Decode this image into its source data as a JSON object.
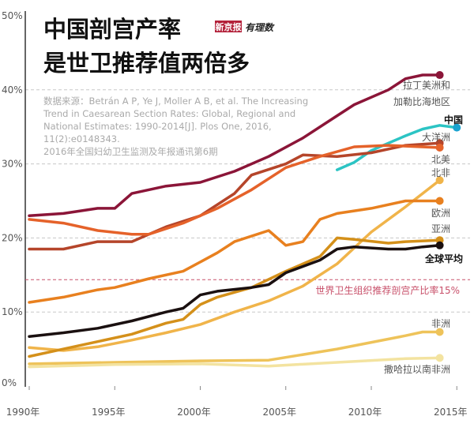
{
  "title": [
    "中国剖宫产率",
    "是世卫推荐值两倍多"
  ],
  "logos": [
    "新京报",
    "有理数"
  ],
  "source": [
    "数据来源：Betrán A P, Ye J, Moller A B, et al. The Increasing",
    "Trend in Caesarean Section Rates: Global, Regional and",
    "National Estimates: 1990-2014[J]. Plos One, 2016,",
    "11(2):e0148343.",
    "2016年全国妇幼卫生监测及年报通讯第6期"
  ],
  "chart_data": {
    "type": "line",
    "title": "中国剖宫产率 是世卫推荐值两倍多",
    "xlim": [
      1990,
      2015
    ],
    "ylim": [
      0,
      50
    ],
    "x_ticks": [
      "1990年",
      "1995年",
      "2000年",
      "2005年",
      "2010年",
      "2015年"
    ],
    "y_ticks": [
      "0%",
      "10%",
      "20%",
      "30%",
      "40%",
      "50%"
    ],
    "grid": "horizontal dashed at 10%, 20%, 30%, 40%",
    "reference_line": {
      "value": 15,
      "label": "世界卫生组织推荐剖宫产比率15%",
      "color": "#c8506a"
    },
    "series": [
      {
        "name": "拉丁美洲和加勒比海地区",
        "label_lines": [
          "拉丁美洲和",
          "加勒比海地区"
        ],
        "color": "#8b1538",
        "x": [
          1990,
          1992,
          1994,
          1995,
          1996,
          1998,
          2000,
          2002,
          2004,
          2006,
          2008,
          2009,
          2011,
          2012,
          2013,
          2014
        ],
        "y": [
          23,
          23.3,
          24,
          24,
          26,
          27,
          27.5,
          29,
          31,
          33.5,
          36.5,
          38,
          40,
          41.5,
          42,
          42
        ]
      },
      {
        "name": "中国",
        "color": "#2cc4c4",
        "dot_color": "#1aa3d0",
        "bold": true,
        "x": [
          2008,
          2009,
          2010,
          2011,
          2012,
          2013,
          2014,
          2015
        ],
        "y": [
          29.2,
          30.2,
          31.8,
          32.8,
          33.8,
          34.7,
          35.2,
          34.9
        ]
      },
      {
        "name": "大洋洲",
        "color": "#b5452a",
        "x": [
          1990,
          1992,
          1994,
          1996,
          1998,
          2000,
          2002,
          2003,
          2005,
          2006,
          2008,
          2010,
          2012,
          2014
        ],
        "y": [
          18.5,
          18.5,
          19.5,
          19.5,
          21.5,
          23,
          26,
          28.5,
          30,
          31.2,
          31,
          31.5,
          32.5,
          32.8
        ]
      },
      {
        "name": "北美",
        "color": "#e5622a",
        "x": [
          1990,
          1992,
          1994,
          1996,
          1997,
          1999,
          2001,
          2003,
          2005,
          2007,
          2009,
          2011,
          2014
        ],
        "y": [
          22.5,
          22,
          21,
          20.5,
          20.5,
          22,
          24,
          26.5,
          29.5,
          31,
          32.3,
          32.5,
          32.2
        ]
      },
      {
        "name": "北非",
        "color": "#f0b44a",
        "x": [
          1990,
          1992,
          1994,
          1996,
          1998,
          2000,
          2002,
          2004,
          2006,
          2008,
          2010,
          2012,
          2014
        ],
        "y": [
          5.2,
          4.8,
          5.3,
          6.2,
          7.2,
          8.3,
          10,
          11.5,
          13.5,
          16.5,
          20.8,
          24.2,
          27.8
        ]
      },
      {
        "name": "欧洲",
        "color": "#e8801f",
        "x": [
          1990,
          1992,
          1994,
          1995,
          1997,
          1999,
          2001,
          2002,
          2004,
          2005,
          2006,
          2007,
          2008,
          2010,
          2012,
          2014
        ],
        "y": [
          11.3,
          12,
          13,
          13.3,
          14.5,
          15.5,
          18,
          19.5,
          21,
          19,
          19.5,
          22.5,
          23.3,
          24,
          25,
          25
        ]
      },
      {
        "name": "亚洲",
        "color": "#d4901a",
        "x": [
          1990,
          1992,
          1994,
          1996,
          1998,
          1999,
          2000,
          2001,
          2003,
          2005,
          2007,
          2008,
          2009,
          2011,
          2012,
          2014
        ],
        "y": [
          4,
          5,
          6,
          7,
          8.5,
          9,
          11,
          12,
          13.3,
          15.5,
          17.5,
          20,
          19.8,
          19.3,
          19.5,
          19.7
        ]
      },
      {
        "name": "全球平均",
        "color": "#1a1010",
        "bold": true,
        "x": [
          1990,
          1992,
          1994,
          1996,
          1998,
          1999,
          2000,
          2001,
          2003,
          2004,
          2005,
          2007,
          2008,
          2009,
          2011,
          2012,
          2013,
          2014
        ],
        "y": [
          6.7,
          7.2,
          7.8,
          8.8,
          10,
          10.5,
          12.3,
          12.8,
          13.3,
          13.7,
          15.3,
          17,
          18.5,
          18.8,
          18.5,
          18.5,
          18.8,
          19
        ]
      },
      {
        "name": "非洲",
        "color": "#eec35a",
        "x": [
          1990,
          1995,
          2000,
          2004,
          2008,
          2012,
          2013,
          2014
        ],
        "y": [
          3,
          3.2,
          3.4,
          3.5,
          5,
          6.8,
          7.3,
          7.3
        ]
      },
      {
        "name": "撒哈拉以南非洲",
        "color": "#f3e3a0",
        "x": [
          1990,
          1995,
          2000,
          2004,
          2008,
          2012,
          2014
        ],
        "y": [
          2.6,
          2.9,
          3,
          2.7,
          3.2,
          3.7,
          3.8
        ]
      }
    ]
  }
}
